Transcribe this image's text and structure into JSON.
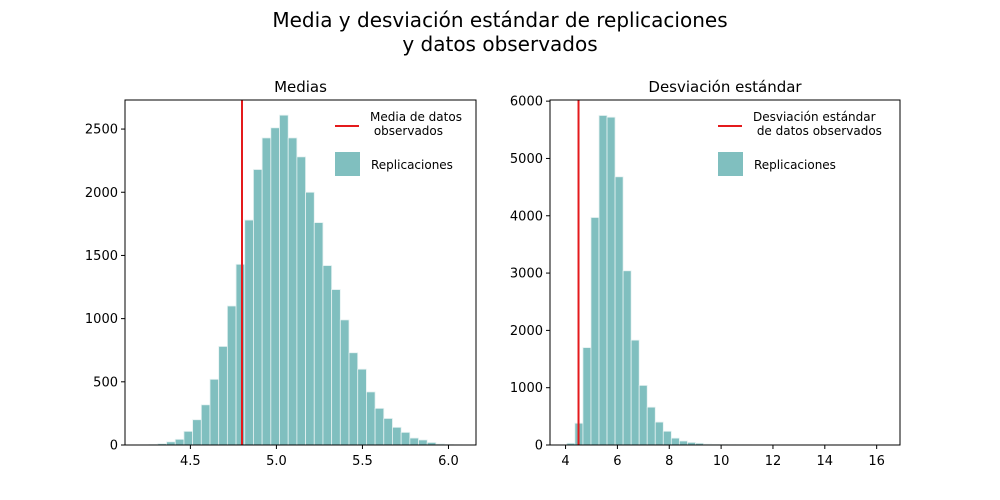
{
  "figure": {
    "title_line1": "Media y desviación estándar de replicaciones",
    "title_line2": "y datos observados"
  },
  "colors": {
    "bar": "#80bfbf",
    "bar_edge": "#e6f2f2",
    "observed_line": "#e41a1c"
  },
  "chart_data": [
    {
      "type": "bar",
      "title": "Medias",
      "xlabel": "",
      "ylabel": "",
      "xlim": [
        4.12,
        6.16
      ],
      "ylim": [
        0,
        2730
      ],
      "xticks": [
        "4.5",
        "5.0",
        "5.5",
        "6.0"
      ],
      "yticks": [
        "0",
        "500",
        "1000",
        "1500",
        "2000",
        "2500"
      ],
      "xtick_values": [
        4.5,
        5.0,
        5.5,
        6.0
      ],
      "ytick_values": [
        0,
        500,
        1000,
        1500,
        2000,
        2500
      ],
      "bin_start": 4.21,
      "bin_width": 0.0505,
      "values": [
        2,
        4,
        10,
        25,
        45,
        108,
        200,
        318,
        520,
        780,
        1100,
        1430,
        1780,
        2180,
        2430,
        2510,
        2610,
        2430,
        2280,
        2000,
        1760,
        1420,
        1230,
        990,
        730,
        600,
        420,
        290,
        210,
        140,
        100,
        55,
        40,
        20,
        8,
        4,
        2,
        1
      ],
      "observed_line": 4.8,
      "legend": {
        "line_label": "Media de datos\n observados",
        "bar_label": "Replicaciones",
        "position": "upper right"
      }
    },
    {
      "type": "bar",
      "title": "Desviación estándar",
      "xlabel": "",
      "ylabel": "",
      "xlim": [
        3.4,
        16.9
      ],
      "ylim": [
        0,
        6020
      ],
      "xticks": [
        "4",
        "6",
        "8",
        "10",
        "12",
        "14",
        "16"
      ],
      "yticks": [
        "0",
        "1000",
        "2000",
        "3000",
        "4000",
        "5000",
        "6000"
      ],
      "xtick_values": [
        4,
        6,
        8,
        10,
        12,
        14,
        16
      ],
      "ytick_values": [
        0,
        1000,
        2000,
        3000,
        4000,
        5000,
        6000
      ],
      "bin_start": 4.05,
      "bin_width": 0.31,
      "values": [
        30,
        380,
        1700,
        3970,
        5750,
        5720,
        4680,
        3040,
        1830,
        1040,
        660,
        400,
        240,
        120,
        70,
        45,
        30,
        15,
        10,
        8,
        5,
        4,
        3,
        2,
        2,
        1,
        1,
        1,
        1,
        1,
        0,
        0,
        0,
        0,
        0,
        0,
        0,
        0,
        0,
        1
      ],
      "observed_line": 4.5,
      "legend": {
        "line_label": "Desviación estándar\n de datos observados",
        "bar_label": "Replicaciones",
        "position": "upper right"
      }
    }
  ]
}
